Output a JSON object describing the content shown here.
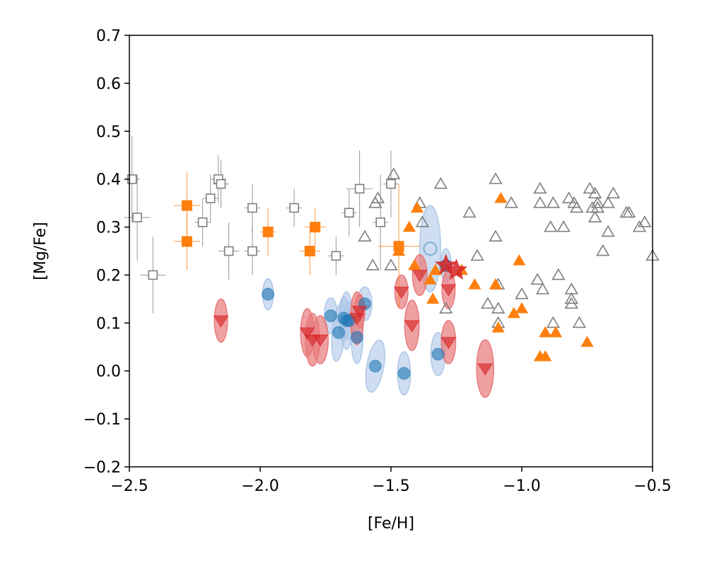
{
  "chart_data": {
    "type": "scatter",
    "title": "",
    "xlabel": "[Fe/H]",
    "ylabel": "[Mg/Fe]",
    "xlim": [
      -2.5,
      -0.5
    ],
    "ylim": [
      -0.2,
      0.7
    ],
    "x_ticks": [
      -2.5,
      -2.0,
      -1.5,
      -1.0,
      -0.5
    ],
    "x_tick_labels": [
      "−2.5",
      "−2.0",
      "−1.5",
      "−1.0",
      "−0.5"
    ],
    "y_ticks": [
      -0.2,
      -0.1,
      0.0,
      0.1,
      0.2,
      0.3,
      0.4,
      0.5,
      0.6,
      0.7
    ],
    "y_tick_labels": [
      "−0.2",
      "−0.1",
      "0.0",
      "0.1",
      "0.2",
      "0.3",
      "0.4",
      "0.5",
      "0.6",
      "0.7"
    ],
    "grid": false,
    "colors": {
      "gray": "#7f7f7f",
      "orange": "#ff7f0e",
      "blue": "#1f77b4",
      "red": "#d62728",
      "blue_ellipse": "#aec7e8",
      "red_ellipse": "#e8797b"
    },
    "series": [
      {
        "marker": "open-square-errorbar",
        "color": "#7f7f7f",
        "points": [
          {
            "x": -2.49,
            "y": 0.4,
            "xerr": 0.03,
            "yerr": 0.09
          },
          {
            "x": -2.47,
            "y": 0.32,
            "xerr": 0.05,
            "yerr": 0.09
          },
          {
            "x": -2.41,
            "y": 0.2,
            "xerr": 0.05,
            "yerr": 0.08
          },
          {
            "x": -2.22,
            "y": 0.31,
            "xerr": 0.03,
            "yerr": 0.05
          },
          {
            "x": -2.19,
            "y": 0.36,
            "xerr": 0.03,
            "yerr": 0.05
          },
          {
            "x": -2.16,
            "y": 0.4,
            "xerr": 0.03,
            "yerr": 0.05
          },
          {
            "x": -2.15,
            "y": 0.39,
            "xerr": 0.03,
            "yerr": 0.05
          },
          {
            "x": -2.12,
            "y": 0.25,
            "xerr": 0.04,
            "yerr": 0.06
          },
          {
            "x": -2.03,
            "y": 0.34,
            "xerr": 0.03,
            "yerr": 0.05
          },
          {
            "x": -2.03,
            "y": 0.25,
            "xerr": 0.03,
            "yerr": 0.05
          },
          {
            "x": -1.87,
            "y": 0.34,
            "xerr": 0.03,
            "yerr": 0.04
          },
          {
            "x": -1.71,
            "y": 0.24,
            "xerr": 0.03,
            "yerr": 0.04
          },
          {
            "x": -1.66,
            "y": 0.33,
            "xerr": 0.03,
            "yerr": 0.05
          },
          {
            "x": -1.62,
            "y": 0.38,
            "xerr": 0.05,
            "yerr": 0.08
          },
          {
            "x": -1.54,
            "y": 0.31,
            "xerr": 0.03,
            "yerr": 0.1
          },
          {
            "x": -1.5,
            "y": 0.39,
            "xerr": 0.03,
            "yerr": 0.07
          }
        ]
      },
      {
        "marker": "open-triangle",
        "color": "#7f7f7f",
        "points": [
          {
            "x": -1.49,
            "y": 0.41
          },
          {
            "x": -1.56,
            "y": 0.35
          },
          {
            "x": -1.55,
            "y": 0.36
          },
          {
            "x": -1.57,
            "y": 0.22
          },
          {
            "x": -1.6,
            "y": 0.28
          },
          {
            "x": -1.5,
            "y": 0.22
          },
          {
            "x": -1.39,
            "y": 0.35
          },
          {
            "x": -1.38,
            "y": 0.31
          },
          {
            "x": -1.31,
            "y": 0.39
          },
          {
            "x": -1.29,
            "y": 0.13
          },
          {
            "x": -1.2,
            "y": 0.33
          },
          {
            "x": -1.17,
            "y": 0.24
          },
          {
            "x": -1.13,
            "y": 0.14
          },
          {
            "x": -1.1,
            "y": 0.4
          },
          {
            "x": -1.1,
            "y": 0.28
          },
          {
            "x": -1.09,
            "y": 0.18
          },
          {
            "x": -1.09,
            "y": 0.13
          },
          {
            "x": -1.09,
            "y": 0.1
          },
          {
            "x": -1.04,
            "y": 0.35
          },
          {
            "x": -1.0,
            "y": 0.16
          },
          {
            "x": -0.93,
            "y": 0.38
          },
          {
            "x": -0.93,
            "y": 0.35
          },
          {
            "x": -0.94,
            "y": 0.19
          },
          {
            "x": -0.92,
            "y": 0.17
          },
          {
            "x": -0.89,
            "y": 0.3
          },
          {
            "x": -0.88,
            "y": 0.35
          },
          {
            "x": -0.88,
            "y": 0.1
          },
          {
            "x": -0.86,
            "y": 0.2
          },
          {
            "x": -0.84,
            "y": 0.3
          },
          {
            "x": -0.82,
            "y": 0.36
          },
          {
            "x": -0.81,
            "y": 0.17
          },
          {
            "x": -0.8,
            "y": 0.35
          },
          {
            "x": -0.81,
            "y": 0.14
          },
          {
            "x": -0.79,
            "y": 0.34
          },
          {
            "x": -0.78,
            "y": 0.1
          },
          {
            "x": -0.81,
            "y": 0.15
          },
          {
            "x": -0.74,
            "y": 0.38
          },
          {
            "x": -0.73,
            "y": 0.34
          },
          {
            "x": -0.72,
            "y": 0.37
          },
          {
            "x": -0.72,
            "y": 0.32
          },
          {
            "x": -0.71,
            "y": 0.35
          },
          {
            "x": -0.71,
            "y": 0.34
          },
          {
            "x": -0.69,
            "y": 0.25
          },
          {
            "x": -0.67,
            "y": 0.35
          },
          {
            "x": -0.67,
            "y": 0.29
          },
          {
            "x": -0.65,
            "y": 0.37
          },
          {
            "x": -0.6,
            "y": 0.33
          },
          {
            "x": -0.59,
            "y": 0.33
          },
          {
            "x": -0.55,
            "y": 0.3
          },
          {
            "x": -0.53,
            "y": 0.31
          },
          {
            "x": -0.5,
            "y": 0.24
          }
        ]
      },
      {
        "marker": "filled-square-errorbar",
        "color": "#ff7f0e",
        "points": [
          {
            "x": -2.28,
            "y": 0.345,
            "xerr": 0.05,
            "yerr": 0.07
          },
          {
            "x": -2.28,
            "y": 0.27,
            "xerr": 0.05,
            "yerr": 0.06
          },
          {
            "x": -1.97,
            "y": 0.29,
            "xerr": 0.03,
            "yerr": 0.05
          },
          {
            "x": -1.81,
            "y": 0.25,
            "xerr": 0.04,
            "yerr": 0.05
          },
          {
            "x": -1.79,
            "y": 0.3,
            "xerr": 0.04,
            "yerr": 0.04
          },
          {
            "x": -1.47,
            "y": 0.26,
            "xerr": 0.08,
            "yerr": 0.13
          }
        ]
      },
      {
        "marker": "filled-triangle",
        "color": "#ff7f0e",
        "points": [
          {
            "x": -1.47,
            "y": 0.25
          },
          {
            "x": -1.43,
            "y": 0.3
          },
          {
            "x": -1.4,
            "y": 0.34
          },
          {
            "x": -1.41,
            "y": 0.22
          },
          {
            "x": -1.35,
            "y": 0.19
          },
          {
            "x": -1.34,
            "y": 0.15
          },
          {
            "x": -1.33,
            "y": 0.21
          },
          {
            "x": -1.23,
            "y": 0.21
          },
          {
            "x": -1.18,
            "y": 0.18
          },
          {
            "x": -1.1,
            "y": 0.18
          },
          {
            "x": -1.09,
            "y": 0.09
          },
          {
            "x": -1.08,
            "y": 0.36
          },
          {
            "x": -1.03,
            "y": 0.12
          },
          {
            "x": -1.01,
            "y": 0.23
          },
          {
            "x": -1.0,
            "y": 0.13
          },
          {
            "x": -0.93,
            "y": 0.03
          },
          {
            "x": -0.91,
            "y": 0.03
          },
          {
            "x": -0.91,
            "y": 0.08
          },
          {
            "x": -0.87,
            "y": 0.08
          },
          {
            "x": -0.75,
            "y": 0.06
          }
        ]
      },
      {
        "marker": "circle-ellipse",
        "color": "#1f77b4",
        "points": [
          {
            "x": -1.97,
            "y": 0.16,
            "ew": 0.04,
            "eh": 0.065,
            "rot": 0
          },
          {
            "x": -1.73,
            "y": 0.115,
            "ew": 0.05,
            "eh": 0.075,
            "rot": 0
          },
          {
            "x": -1.7,
            "y": 0.08,
            "ew": 0.05,
            "eh": 0.12,
            "rot": 5
          },
          {
            "x": -1.68,
            "y": 0.11,
            "ew": 0.04,
            "eh": 0.09,
            "rot": 0
          },
          {
            "x": -1.67,
            "y": 0.105,
            "ew": 0.05,
            "eh": 0.12,
            "rot": 0
          },
          {
            "x": -1.66,
            "y": 0.105,
            "ew": 0.04,
            "eh": 0.08,
            "rot": 0
          },
          {
            "x": -1.63,
            "y": 0.07,
            "ew": 0.045,
            "eh": 0.11,
            "rot": 0
          },
          {
            "x": -1.6,
            "y": 0.14,
            "ew": 0.055,
            "eh": 0.07,
            "rot": 0
          },
          {
            "x": -1.56,
            "y": 0.01,
            "ew": 0.065,
            "eh": 0.11,
            "rot": 10
          },
          {
            "x": -1.45,
            "y": -0.005,
            "ew": 0.05,
            "eh": 0.09,
            "rot": 0
          },
          {
            "x": -1.32,
            "y": 0.035,
            "ew": 0.055,
            "eh": 0.09,
            "rot": 0
          },
          {
            "x": -1.29,
            "y": 0.22,
            "ew": 0.04,
            "eh": 0.07,
            "rot": 0
          }
        ]
      },
      {
        "marker": "open-circle-ellipse",
        "color": "#1f77b4",
        "points": [
          {
            "x": -1.35,
            "y": 0.255,
            "ew": 0.08,
            "eh": 0.18,
            "rot": 0
          }
        ]
      },
      {
        "marker": "down-triangle-ellipse",
        "color": "#d62728",
        "points": [
          {
            "x": -2.15,
            "y": 0.105,
            "ew": 0.05,
            "eh": 0.09,
            "rot": 0
          },
          {
            "x": -1.82,
            "y": 0.08,
            "ew": 0.05,
            "eh": 0.1,
            "rot": 0
          },
          {
            "x": -1.8,
            "y": 0.065,
            "ew": 0.055,
            "eh": 0.11,
            "rot": 0
          },
          {
            "x": -1.77,
            "y": 0.065,
            "ew": 0.06,
            "eh": 0.1,
            "rot": 0
          },
          {
            "x": -1.63,
            "y": 0.11,
            "ew": 0.05,
            "eh": 0.11,
            "rot": 0
          },
          {
            "x": -1.62,
            "y": 0.125,
            "ew": 0.04,
            "eh": 0.07,
            "rot": 0
          },
          {
            "x": -1.46,
            "y": 0.165,
            "ew": 0.05,
            "eh": 0.07,
            "rot": 0
          },
          {
            "x": -1.42,
            "y": 0.095,
            "ew": 0.055,
            "eh": 0.105,
            "rot": 0
          },
          {
            "x": -1.39,
            "y": 0.2,
            "ew": 0.055,
            "eh": 0.085,
            "rot": 0
          },
          {
            "x": -1.28,
            "y": 0.17,
            "ew": 0.05,
            "eh": 0.08,
            "rot": 0
          },
          {
            "x": -1.28,
            "y": 0.06,
            "ew": 0.055,
            "eh": 0.09,
            "rot": 0
          },
          {
            "x": -1.14,
            "y": 0.005,
            "ew": 0.065,
            "eh": 0.12,
            "rot": 0
          }
        ]
      },
      {
        "marker": "star",
        "color": "#d62728",
        "points": [
          {
            "x": -1.29,
            "y": 0.22
          },
          {
            "x": -1.25,
            "y": 0.21
          }
        ]
      }
    ]
  }
}
